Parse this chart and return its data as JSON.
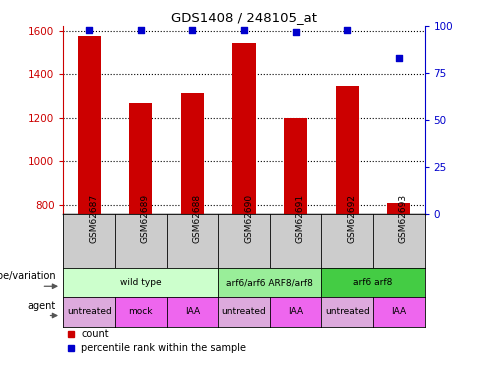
{
  "title": "GDS1408 / 248105_at",
  "samples": [
    "GSM62687",
    "GSM62689",
    "GSM62688",
    "GSM62690",
    "GSM62691",
    "GSM62692",
    "GSM62693"
  ],
  "counts": [
    1575,
    1270,
    1315,
    1545,
    1200,
    1345,
    808
  ],
  "percentile_ranks": [
    98,
    98,
    98,
    98,
    97,
    98,
    83
  ],
  "ylim_left": [
    760,
    1620
  ],
  "ylim_right": [
    0,
    100
  ],
  "yticks_left": [
    800,
    1000,
    1200,
    1400,
    1600
  ],
  "yticks_right": [
    0,
    25,
    50,
    75,
    100
  ],
  "bar_color": "#cc0000",
  "dot_color": "#0000cc",
  "bar_width": 0.45,
  "genotype_groups": [
    {
      "label": "wild type",
      "start": 0,
      "end": 2,
      "color": "#ccffcc"
    },
    {
      "label": "arf6/arf6 ARF8/arf8",
      "start": 3,
      "end": 4,
      "color": "#99ee99"
    },
    {
      "label": "arf6 arf8",
      "start": 5,
      "end": 6,
      "color": "#44cc44"
    }
  ],
  "agent_groups": [
    {
      "label": "untreated",
      "start": 0,
      "end": 0,
      "color": "#ddaadd"
    },
    {
      "label": "mock",
      "start": 1,
      "end": 1,
      "color": "#ee66ee"
    },
    {
      "label": "IAA",
      "start": 2,
      "end": 2,
      "color": "#ee66ee"
    },
    {
      "label": "untreated",
      "start": 3,
      "end": 3,
      "color": "#ddaadd"
    },
    {
      "label": "IAA",
      "start": 4,
      "end": 4,
      "color": "#ee66ee"
    },
    {
      "label": "untreated",
      "start": 5,
      "end": 5,
      "color": "#ddaadd"
    },
    {
      "label": "IAA",
      "start": 6,
      "end": 6,
      "color": "#ee66ee"
    }
  ],
  "legend_count_label": "count",
  "legend_pct_label": "percentile rank within the sample",
  "genotype_label": "genotype/variation",
  "agent_label": "agent",
  "tick_color_left": "#cc0000",
  "tick_color_right": "#0000cc",
  "sample_bg": "#cccccc"
}
